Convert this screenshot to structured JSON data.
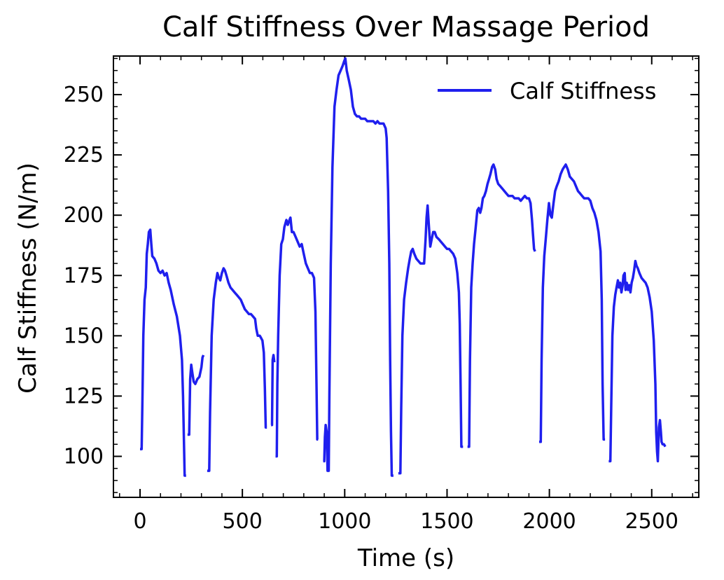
{
  "chart_data": {
    "type": "line",
    "title": "Calf Stiffness Over Massage Period",
    "xlabel": "Time (s)",
    "ylabel": "Calf Stiffness (N/m)",
    "xlim": [
      -130,
      2730
    ],
    "ylim": [
      83,
      266
    ],
    "xticks": [
      0,
      500,
      1000,
      1500,
      2000,
      2500
    ],
    "yticks": [
      100,
      125,
      150,
      175,
      200,
      225,
      250
    ],
    "xticks_minor_step": 100,
    "yticks_minor_step": 5,
    "grid": false,
    "legend_position": "top-right",
    "series": [
      {
        "name": "Calf Stiffness",
        "color": "#1f1fee",
        "points": [
          [
            0,
            103
          ],
          [
            8,
            103
          ],
          [
            12,
            125
          ],
          [
            16,
            150
          ],
          [
            22,
            165
          ],
          [
            28,
            170
          ],
          [
            33,
            184
          ],
          [
            38,
            188
          ],
          [
            43,
            193
          ],
          [
            50,
            194
          ],
          [
            55,
            188
          ],
          [
            60,
            183
          ],
          [
            70,
            182
          ],
          [
            80,
            180
          ],
          [
            90,
            177
          ],
          [
            100,
            176
          ],
          [
            110,
            177
          ],
          [
            120,
            175
          ],
          [
            130,
            176
          ],
          [
            140,
            172
          ],
          [
            150,
            169
          ],
          [
            165,
            163
          ],
          [
            180,
            158
          ],
          [
            195,
            150
          ],
          [
            205,
            140
          ],
          [
            210,
            125
          ],
          [
            215,
            105
          ],
          [
            218,
            92
          ],
          [
            225,
            92
          ],
          [
            null,
            null
          ],
          [
            232,
            109
          ],
          [
            240,
            109
          ],
          [
            245,
            132
          ],
          [
            250,
            138
          ],
          [
            255,
            135
          ],
          [
            262,
            131
          ],
          [
            270,
            130
          ],
          [
            280,
            132
          ],
          [
            290,
            133
          ],
          [
            300,
            137
          ],
          [
            305,
            141
          ],
          [
            310,
            142
          ],
          [
            null,
            null
          ],
          [
            328,
            94
          ],
          [
            338,
            94
          ],
          [
            342,
            118
          ],
          [
            350,
            150
          ],
          [
            360,
            165
          ],
          [
            370,
            172
          ],
          [
            378,
            176
          ],
          [
            385,
            174
          ],
          [
            392,
            173
          ],
          [
            400,
            176
          ],
          [
            408,
            178
          ],
          [
            415,
            177
          ],
          [
            422,
            175
          ],
          [
            432,
            172
          ],
          [
            442,
            170
          ],
          [
            452,
            169
          ],
          [
            462,
            168
          ],
          [
            472,
            167
          ],
          [
            482,
            166
          ],
          [
            492,
            165
          ],
          [
            502,
            163
          ],
          [
            512,
            161
          ],
          [
            522,
            160
          ],
          [
            532,
            159
          ],
          [
            542,
            159
          ],
          [
            552,
            158
          ],
          [
            562,
            157
          ],
          [
            568,
            153
          ],
          [
            575,
            150
          ],
          [
            585,
            150
          ],
          [
            592,
            149
          ],
          [
            598,
            148
          ],
          [
            605,
            143
          ],
          [
            610,
            128
          ],
          [
            614,
            112
          ],
          [
            620,
            112
          ],
          [
            null,
            null
          ],
          [
            640,
            113
          ],
          [
            645,
            113
          ],
          [
            648,
            140
          ],
          [
            652,
            142
          ],
          [
            656,
            139
          ],
          [
            null,
            null
          ],
          [
            662,
            100
          ],
          [
            668,
            100
          ],
          [
            671,
            130
          ],
          [
            675,
            150
          ],
          [
            682,
            175
          ],
          [
            690,
            188
          ],
          [
            698,
            190
          ],
          [
            705,
            195
          ],
          [
            715,
            198
          ],
          [
            722,
            196
          ],
          [
            730,
            198
          ],
          [
            735,
            199
          ],
          [
            742,
            193
          ],
          [
            750,
            193
          ],
          [
            760,
            191
          ],
          [
            770,
            189
          ],
          [
            780,
            187
          ],
          [
            790,
            188
          ],
          [
            800,
            184
          ],
          [
            810,
            180
          ],
          [
            820,
            178
          ],
          [
            830,
            176
          ],
          [
            840,
            176
          ],
          [
            850,
            174
          ],
          [
            857,
            160
          ],
          [
            862,
            130
          ],
          [
            866,
            107
          ],
          [
            870,
            107
          ],
          [
            null,
            null
          ],
          [
            895,
            98
          ],
          [
            900,
            98
          ],
          [
            903,
            108
          ],
          [
            907,
            113
          ],
          [
            912,
            110
          ],
          [
            916,
            94
          ],
          [
            922,
            94
          ],
          [
            925,
            125
          ],
          [
            932,
            180
          ],
          [
            940,
            220
          ],
          [
            950,
            245
          ],
          [
            960,
            252
          ],
          [
            970,
            258
          ],
          [
            980,
            260
          ],
          [
            990,
            262
          ],
          [
            998,
            264
          ],
          [
            1003,
            265
          ],
          [
            1010,
            260
          ],
          [
            1020,
            256
          ],
          [
            1030,
            252
          ],
          [
            1040,
            245
          ],
          [
            1050,
            242
          ],
          [
            1060,
            241
          ],
          [
            1070,
            241
          ],
          [
            1080,
            240
          ],
          [
            1090,
            240
          ],
          [
            1100,
            240
          ],
          [
            1110,
            239
          ],
          [
            1120,
            239
          ],
          [
            1130,
            239
          ],
          [
            1140,
            239
          ],
          [
            1150,
            238
          ],
          [
            1160,
            239
          ],
          [
            1170,
            238
          ],
          [
            1180,
            238
          ],
          [
            1190,
            238
          ],
          [
            1200,
            236
          ],
          [
            1205,
            232
          ],
          [
            1212,
            210
          ],
          [
            1218,
            180
          ],
          [
            1222,
            140
          ],
          [
            1226,
            110
          ],
          [
            1230,
            92
          ],
          [
            1238,
            92
          ],
          [
            null,
            null
          ],
          [
            1262,
            93
          ],
          [
            1272,
            93
          ],
          [
            1276,
            120
          ],
          [
            1282,
            150
          ],
          [
            1290,
            165
          ],
          [
            1300,
            172
          ],
          [
            1310,
            178
          ],
          [
            1318,
            182
          ],
          [
            1325,
            185
          ],
          [
            1332,
            186
          ],
          [
            1340,
            184
          ],
          [
            1350,
            182
          ],
          [
            1360,
            181
          ],
          [
            1370,
            180
          ],
          [
            1380,
            180
          ],
          [
            1388,
            180
          ],
          [
            1395,
            190
          ],
          [
            1400,
            199
          ],
          [
            1405,
            204
          ],
          [
            1410,
            197
          ],
          [
            1418,
            187
          ],
          [
            1425,
            190
          ],
          [
            1432,
            193
          ],
          [
            1440,
            193
          ],
          [
            1448,
            191
          ],
          [
            1460,
            190
          ],
          [
            1470,
            189
          ],
          [
            1480,
            188
          ],
          [
            1490,
            187
          ],
          [
            1500,
            186
          ],
          [
            1510,
            186
          ],
          [
            1520,
            185
          ],
          [
            1530,
            184
          ],
          [
            1540,
            182
          ],
          [
            1550,
            176
          ],
          [
            1558,
            168
          ],
          [
            1562,
            155
          ],
          [
            1566,
            130
          ],
          [
            1570,
            104
          ],
          [
            1578,
            104
          ],
          [
            null,
            null
          ],
          [
            1600,
            104
          ],
          [
            1608,
            104
          ],
          [
            1612,
            140
          ],
          [
            1618,
            170
          ],
          [
            1625,
            180
          ],
          [
            1632,
            188
          ],
          [
            1640,
            195
          ],
          [
            1648,
            202
          ],
          [
            1655,
            203
          ],
          [
            1662,
            201
          ],
          [
            1668,
            203
          ],
          [
            1675,
            207
          ],
          [
            1682,
            208
          ],
          [
            1690,
            210
          ],
          [
            1698,
            213
          ],
          [
            1705,
            215
          ],
          [
            1712,
            217
          ],
          [
            1720,
            220
          ],
          [
            1727,
            221
          ],
          [
            1735,
            219
          ],
          [
            1742,
            215
          ],
          [
            1750,
            213
          ],
          [
            1760,
            212
          ],
          [
            1770,
            211
          ],
          [
            1780,
            210
          ],
          [
            1790,
            209
          ],
          [
            1800,
            208
          ],
          [
            1810,
            208
          ],
          [
            1820,
            208
          ],
          [
            1830,
            207
          ],
          [
            1840,
            207
          ],
          [
            1850,
            207
          ],
          [
            1860,
            206
          ],
          [
            1870,
            207
          ],
          [
            1880,
            208
          ],
          [
            1890,
            207
          ],
          [
            1900,
            207
          ],
          [
            1908,
            205
          ],
          [
            1915,
            198
          ],
          [
            1920,
            192
          ],
          [
            1925,
            186
          ],
          [
            1930,
            185
          ],
          [
            null,
            null
          ],
          [
            1950,
            106
          ],
          [
            1958,
            106
          ],
          [
            1962,
            140
          ],
          [
            1968,
            170
          ],
          [
            1975,
            183
          ],
          [
            1982,
            190
          ],
          [
            1990,
            198
          ],
          [
            1998,
            205
          ],
          [
            2005,
            200
          ],
          [
            2012,
            199
          ],
          [
            2020,
            205
          ],
          [
            2028,
            210
          ],
          [
            2036,
            212
          ],
          [
            2045,
            214
          ],
          [
            2055,
            217
          ],
          [
            2065,
            219
          ],
          [
            2072,
            220
          ],
          [
            2080,
            221
          ],
          [
            2090,
            219
          ],
          [
            2100,
            216
          ],
          [
            2110,
            215
          ],
          [
            2120,
            214
          ],
          [
            2130,
            212
          ],
          [
            2140,
            210
          ],
          [
            2150,
            209
          ],
          [
            2160,
            208
          ],
          [
            2170,
            207
          ],
          [
            2180,
            207
          ],
          [
            2190,
            207
          ],
          [
            2200,
            206
          ],
          [
            2210,
            203
          ],
          [
            2220,
            201
          ],
          [
            2230,
            198
          ],
          [
            2240,
            193
          ],
          [
            2250,
            185
          ],
          [
            2256,
            165
          ],
          [
            2260,
            130
          ],
          [
            2265,
            107
          ],
          [
            2272,
            107
          ],
          [
            null,
            null
          ],
          [
            2290,
            98
          ],
          [
            2298,
            98
          ],
          [
            2302,
            120
          ],
          [
            2308,
            150
          ],
          [
            2315,
            162
          ],
          [
            2322,
            167
          ],
          [
            2328,
            170
          ],
          [
            2335,
            173
          ],
          [
            2340,
            170
          ],
          [
            2346,
            172
          ],
          [
            2352,
            168
          ],
          [
            2358,
            171
          ],
          [
            2362,
            175
          ],
          [
            2368,
            176
          ],
          [
            2372,
            169
          ],
          [
            2378,
            172
          ],
          [
            2384,
            169
          ],
          [
            2390,
            171
          ],
          [
            2396,
            168
          ],
          [
            2402,
            172
          ],
          [
            2408,
            174
          ],
          [
            2414,
            177
          ],
          [
            2420,
            181
          ],
          [
            2426,
            179
          ],
          [
            2432,
            178
          ],
          [
            2440,
            176
          ],
          [
            2450,
            174
          ],
          [
            2460,
            173
          ],
          [
            2470,
            172
          ],
          [
            2480,
            170
          ],
          [
            2490,
            166
          ],
          [
            2500,
            160
          ],
          [
            2510,
            148
          ],
          [
            2518,
            130
          ],
          [
            2522,
            110
          ],
          [
            2526,
            102
          ],
          [
            2530,
            98
          ],
          [
            2535,
            112
          ],
          [
            2540,
            115
          ],
          [
            2545,
            110
          ],
          [
            2548,
            106
          ],
          [
            2553,
            105
          ],
          [
            2560,
            105
          ],
          [
            2566,
            104
          ]
        ]
      }
    ]
  }
}
